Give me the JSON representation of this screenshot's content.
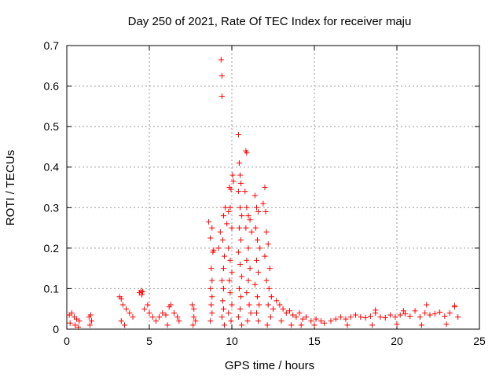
{
  "chart_data": {
    "type": "scatter",
    "title": "Day 250 of 2021, Rate Of TEC Index for receiver maju",
    "xlabel": "GPS time / hours",
    "ylabel": "ROTI / TECUs",
    "xlim": [
      0,
      25
    ],
    "ylim": [
      0,
      0.7
    ],
    "x_ticks": [
      0,
      5,
      10,
      15,
      20,
      25
    ],
    "y_ticks": [
      0,
      0.1,
      0.2,
      0.3,
      0.4,
      0.5,
      0.6,
      0.7
    ],
    "x_tick_labels": [
      "0",
      "5",
      "10",
      "15",
      "20",
      "25"
    ],
    "y_tick_labels": [
      "0",
      "0.1",
      "0.2",
      "0.3",
      "0.4",
      "0.5",
      "0.6",
      "0.7"
    ],
    "grid": true,
    "marker": "+",
    "color": "#ff0000",
    "series": [
      {
        "name": "ROTI",
        "points": [
          [
            0.15,
            0.035
          ],
          [
            0.3,
            0.04
          ],
          [
            0.45,
            0.03
          ],
          [
            0.6,
            0.025
          ],
          [
            0.75,
            0.02
          ],
          [
            0.2,
            0.015
          ],
          [
            0.5,
            0.01
          ],
          [
            0.7,
            0.005
          ],
          [
            1.35,
            0.03
          ],
          [
            1.45,
            0.035
          ],
          [
            1.5,
            0.02
          ],
          [
            1.4,
            0.01
          ],
          [
            3.2,
            0.08
          ],
          [
            3.3,
            0.075
          ],
          [
            3.4,
            0.06
          ],
          [
            3.6,
            0.05
          ],
          [
            3.8,
            0.04
          ],
          [
            4.0,
            0.03
          ],
          [
            3.3,
            0.02
          ],
          [
            3.5,
            0.01
          ],
          [
            4.4,
            0.09
          ],
          [
            4.5,
            0.095
          ],
          [
            4.6,
            0.092
          ],
          [
            4.55,
            0.085
          ],
          [
            4.7,
            0.05
          ],
          [
            4.9,
            0.06
          ],
          [
            5.0,
            0.04
          ],
          [
            5.2,
            0.03
          ],
          [
            5.4,
            0.02
          ],
          [
            5.6,
            0.03
          ],
          [
            5.8,
            0.04
          ],
          [
            6.0,
            0.035
          ],
          [
            6.2,
            0.055
          ],
          [
            6.3,
            0.06
          ],
          [
            6.5,
            0.04
          ],
          [
            6.7,
            0.03
          ],
          [
            6.8,
            0.02
          ],
          [
            6.1,
            0.01
          ],
          [
            7.6,
            0.06
          ],
          [
            7.7,
            0.05
          ],
          [
            7.7,
            0.03
          ],
          [
            7.8,
            0.02
          ],
          [
            7.65,
            0.01
          ],
          [
            8.6,
            0.265
          ],
          [
            8.7,
            0.225
          ],
          [
            8.8,
            0.25
          ],
          [
            8.9,
            0.195
          ],
          [
            8.85,
            0.19
          ],
          [
            8.75,
            0.15
          ],
          [
            8.8,
            0.12
          ],
          [
            8.7,
            0.1
          ],
          [
            8.8,
            0.08
          ],
          [
            8.75,
            0.06
          ],
          [
            8.8,
            0.04
          ],
          [
            8.7,
            0.02
          ],
          [
            9.2,
            0.2
          ],
          [
            9.35,
            0.665
          ],
          [
            9.4,
            0.625
          ],
          [
            9.4,
            0.575
          ],
          [
            9.3,
            0.24
          ],
          [
            9.5,
            0.28
          ],
          [
            9.6,
            0.3
          ],
          [
            9.45,
            0.22
          ],
          [
            9.55,
            0.18
          ],
          [
            9.5,
            0.15
          ],
          [
            9.4,
            0.12
          ],
          [
            9.5,
            0.1
          ],
          [
            9.45,
            0.07
          ],
          [
            9.5,
            0.05
          ],
          [
            9.4,
            0.03
          ],
          [
            9.55,
            0.01
          ],
          [
            9.7,
            0.26
          ],
          [
            9.8,
            0.29
          ],
          [
            9.85,
            0.35
          ],
          [
            9.95,
            0.345
          ],
          [
            10.05,
            0.38
          ],
          [
            10.1,
            0.365
          ],
          [
            9.9,
            0.3
          ],
          [
            10.0,
            0.25
          ],
          [
            9.8,
            0.2
          ],
          [
            9.9,
            0.17
          ],
          [
            10.0,
            0.14
          ],
          [
            9.85,
            0.12
          ],
          [
            9.9,
            0.09
          ],
          [
            10.0,
            0.06
          ],
          [
            9.8,
            0.04
          ],
          [
            9.95,
            0.02
          ],
          [
            10.4,
            0.48
          ],
          [
            10.45,
            0.41
          ],
          [
            10.5,
            0.38
          ],
          [
            10.55,
            0.36
          ],
          [
            10.4,
            0.34
          ],
          [
            10.5,
            0.3
          ],
          [
            10.6,
            0.28
          ],
          [
            10.45,
            0.25
          ],
          [
            10.55,
            0.22
          ],
          [
            10.4,
            0.19
          ],
          [
            10.5,
            0.16
          ],
          [
            10.6,
            0.13
          ],
          [
            10.45,
            0.1
          ],
          [
            10.55,
            0.08
          ],
          [
            10.5,
            0.05
          ],
          [
            10.4,
            0.03
          ],
          [
            10.6,
            0.01
          ],
          [
            10.85,
            0.44
          ],
          [
            10.9,
            0.435
          ],
          [
            10.8,
            0.34
          ],
          [
            10.9,
            0.3
          ],
          [
            11.0,
            0.28
          ],
          [
            10.85,
            0.25
          ],
          [
            11.1,
            0.27
          ],
          [
            11.2,
            0.24
          ],
          [
            11.0,
            0.2
          ],
          [
            10.9,
            0.17
          ],
          [
            11.1,
            0.15
          ],
          [
            11.0,
            0.12
          ],
          [
            10.9,
            0.09
          ],
          [
            11.05,
            0.06
          ],
          [
            11.15,
            0.04
          ],
          [
            10.95,
            0.02
          ],
          [
            11.4,
            0.33
          ],
          [
            11.5,
            0.3
          ],
          [
            11.6,
            0.29
          ],
          [
            11.45,
            0.25
          ],
          [
            11.55,
            0.22
          ],
          [
            11.7,
            0.2
          ],
          [
            11.5,
            0.17
          ],
          [
            11.6,
            0.14
          ],
          [
            11.4,
            0.11
          ],
          [
            11.55,
            0.08
          ],
          [
            11.65,
            0.06
          ],
          [
            11.5,
            0.04
          ],
          [
            11.6,
            0.02
          ],
          [
            11.9,
            0.31
          ],
          [
            12.0,
            0.35
          ],
          [
            12.05,
            0.29
          ],
          [
            12.1,
            0.24
          ],
          [
            12.2,
            0.21
          ],
          [
            12.0,
            0.18
          ],
          [
            12.3,
            0.15
          ],
          [
            12.1,
            0.12
          ],
          [
            12.25,
            0.1
          ],
          [
            12.4,
            0.08
          ],
          [
            12.2,
            0.06
          ],
          [
            12.5,
            0.05
          ],
          [
            12.35,
            0.03
          ],
          [
            12.15,
            0.01
          ],
          [
            12.7,
            0.07
          ],
          [
            12.9,
            0.06
          ],
          [
            13.1,
            0.05
          ],
          [
            13.3,
            0.04
          ],
          [
            13.5,
            0.045
          ],
          [
            13.7,
            0.035
          ],
          [
            13.9,
            0.03
          ],
          [
            14.1,
            0.04
          ],
          [
            14.3,
            0.025
          ],
          [
            14.5,
            0.03
          ],
          [
            14.8,
            0.02
          ],
          [
            15.1,
            0.025
          ],
          [
            15.4,
            0.02
          ],
          [
            15.6,
            0.015
          ],
          [
            13.0,
            0.02
          ],
          [
            13.6,
            0.01
          ],
          [
            14.2,
            0.01
          ],
          [
            15.0,
            0.01
          ],
          [
            16.0,
            0.02
          ],
          [
            16.3,
            0.025
          ],
          [
            16.6,
            0.03
          ],
          [
            16.9,
            0.025
          ],
          [
            17.2,
            0.03
          ],
          [
            17.5,
            0.035
          ],
          [
            17.8,
            0.03
          ],
          [
            18.1,
            0.028
          ],
          [
            18.4,
            0.032
          ],
          [
            18.7,
            0.04
          ],
          [
            19.0,
            0.03
          ],
          [
            19.3,
            0.028
          ],
          [
            19.6,
            0.035
          ],
          [
            19.9,
            0.03
          ],
          [
            20.2,
            0.035
          ],
          [
            20.5,
            0.038
          ],
          [
            20.8,
            0.032
          ],
          [
            21.1,
            0.045
          ],
          [
            21.4,
            0.03
          ],
          [
            21.7,
            0.04
          ],
          [
            22.0,
            0.035
          ],
          [
            22.3,
            0.038
          ],
          [
            22.6,
            0.042
          ],
          [
            22.9,
            0.032
          ],
          [
            23.2,
            0.04
          ],
          [
            23.5,
            0.055
          ],
          [
            23.7,
            0.03
          ],
          [
            18.7,
            0.047
          ],
          [
            20.4,
            0.045
          ],
          [
            21.8,
            0.06
          ],
          [
            23.5,
            0.058
          ],
          [
            17.0,
            0.01
          ],
          [
            18.5,
            0.01
          ],
          [
            20.0,
            0.012
          ],
          [
            21.5,
            0.01
          ],
          [
            23.0,
            0.012
          ]
        ]
      }
    ]
  }
}
